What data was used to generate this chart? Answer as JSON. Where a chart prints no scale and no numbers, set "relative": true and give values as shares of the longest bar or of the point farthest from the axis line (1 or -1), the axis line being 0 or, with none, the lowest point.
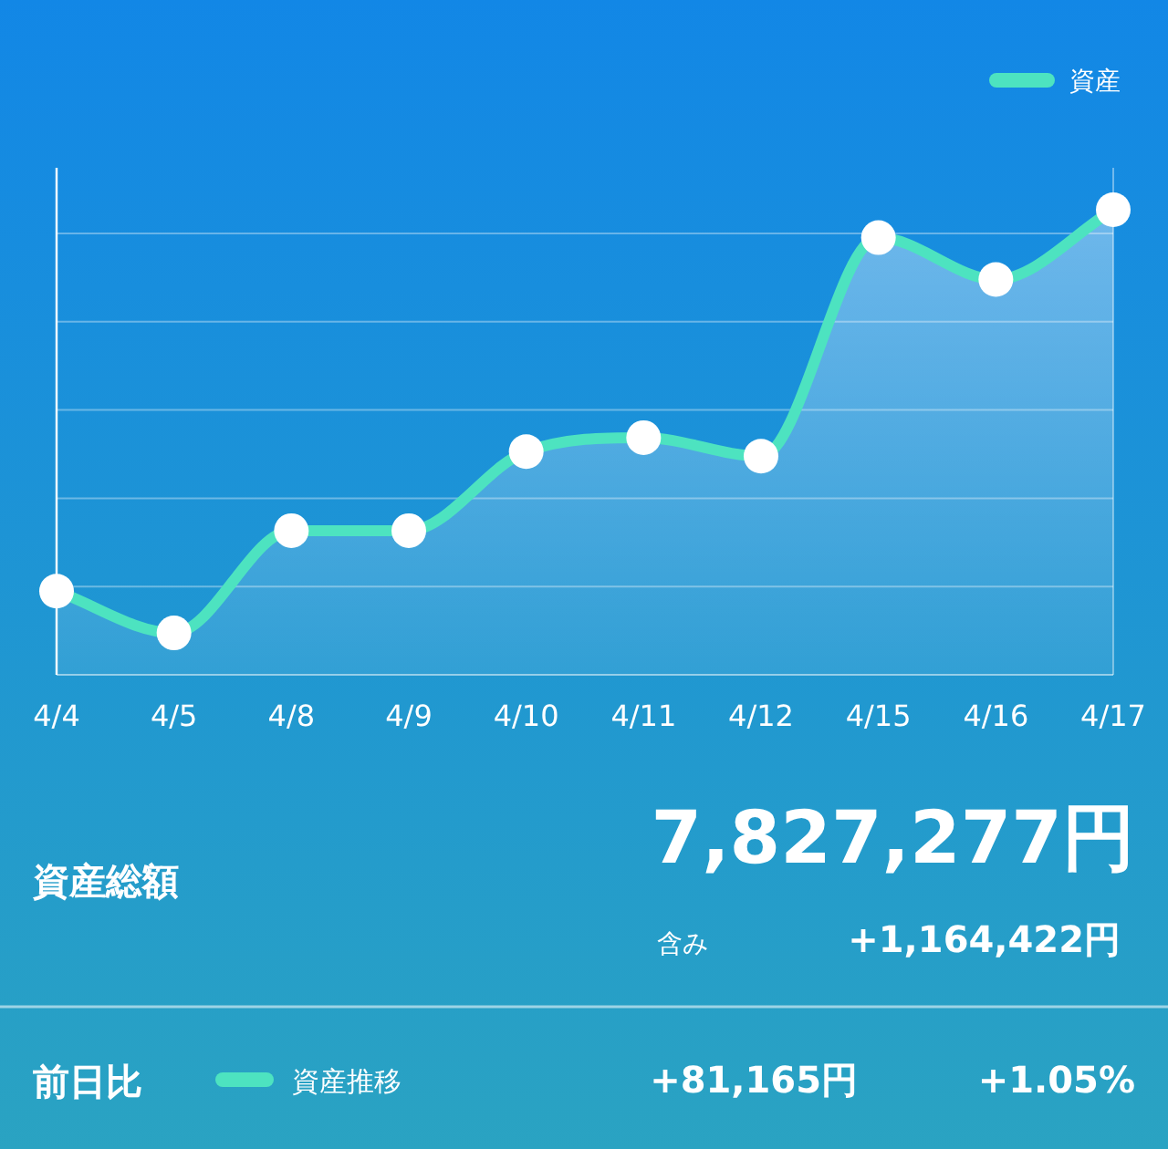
{
  "chart_data": [
    {
      "type": "area",
      "categories": [
        "4/4",
        "4/5",
        "4/8",
        "4/9",
        "4/10",
        "4/11",
        "4/12",
        "4/15",
        "4/16",
        "4/17"
      ],
      "series": [
        {
          "name": "資産",
          "color": "#4de3c0",
          "values": [
            0.18,
            0.09,
            0.31,
            0.31,
            0.48,
            0.51,
            0.47,
            0.94,
            0.85,
            1
          ]
        }
      ],
      "relative": true,
      "legend": "top right",
      "marker": "circle",
      "grid": "y"
    },
    {
      "type": "other",
      "annotations": [
        "資産総額",
        "7,827,277円",
        "含み",
        "+1,164,422円",
        "前日比",
        "資産推移",
        "+81,165円",
        "+1.05%"
      ]
    }
  ]
}
